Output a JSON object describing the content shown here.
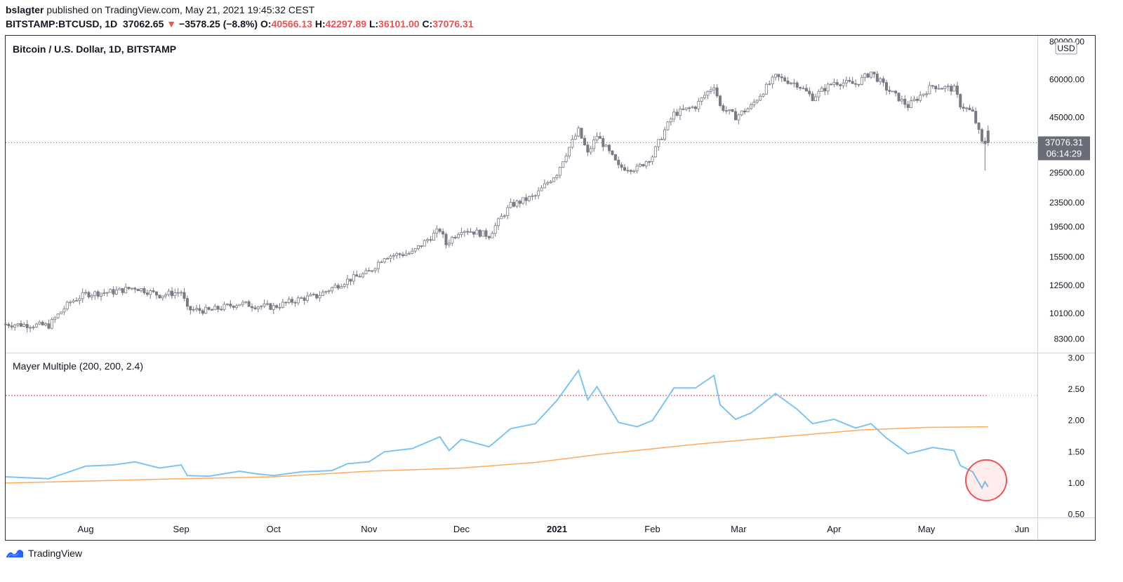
{
  "header": {
    "author": "bslagter",
    "published_text": "published on TradingView.com, May 21, 2021 19:45:32 CEST",
    "symbol": "BITSTAMP:BTCUSD, 1D",
    "last": "37062.65",
    "change": "−3578.25 (−8.8%)",
    "o_label": "O:",
    "o_val": "40566.13",
    "h_label": "H:",
    "h_val": "42297.89",
    "l_label": "L:",
    "l_val": "36101.00",
    "c_label": "C:",
    "c_val": "37076.31"
  },
  "price_pane": {
    "title": "Bitcoin / U.S. Dollar, 1D, BITSTAMP",
    "currency": "USD",
    "price_label": "37076.31",
    "countdown": "06:14:29"
  },
  "indicator_pane": {
    "title": "Mayer Multiple (200, 200, 2.4)"
  },
  "footer": {
    "brand": "TradingView"
  },
  "colors": {
    "candle": "#787b86",
    "mayer": "#7cc4f4",
    "sma": "#ffab5e",
    "threshold": "#e53935",
    "circle": "#ef5350"
  },
  "chart_data": [
    {
      "type": "candlestick",
      "title": "Bitcoin / U.S. Dollar, 1D, BITSTAMP",
      "y_scale": "log",
      "y_ticks": [
        80000,
        60000,
        45000,
        29500,
        23500,
        19500,
        15500,
        12500,
        10100,
        8300
      ],
      "y_tick_labels": [
        "80000.00",
        "60000.00",
        "45000.00",
        "29500.00",
        "23500.00",
        "19500.00",
        "15500.00",
        "12500.00",
        "10100.00",
        "8300.00"
      ],
      "x_tick_labels": [
        "Aug",
        "Sep",
        "Oct",
        "Nov",
        "Dec",
        "2021",
        "Feb",
        "Mar",
        "Apr",
        "May",
        "Jun"
      ],
      "x_tick_dates": [
        "2020-08-01",
        "2020-09-01",
        "2020-10-01",
        "2020-11-01",
        "2020-12-01",
        "2021-01-01",
        "2021-02-01",
        "2021-03-01",
        "2021-04-01",
        "2021-05-01",
        "2021-06-01"
      ],
      "x_range": [
        "2020-07-06",
        "2021-06-06"
      ],
      "y_range": [
        7600,
        82000
      ],
      "close_keypoints": [
        [
          "2020-07-06",
          9300
        ],
        [
          "2020-07-20",
          9200
        ],
        [
          "2020-07-27",
          11000
        ],
        [
          "2020-08-01",
          11700
        ],
        [
          "2020-08-10",
          11900
        ],
        [
          "2020-08-17",
          12300
        ],
        [
          "2020-08-25",
          11600
        ],
        [
          "2020-09-01",
          11900
        ],
        [
          "2020-09-03",
          10400
        ],
        [
          "2020-09-10",
          10300
        ],
        [
          "2020-09-20",
          10900
        ],
        [
          "2020-09-25",
          10700
        ],
        [
          "2020-10-01",
          10600
        ],
        [
          "2020-10-10",
          11300
        ],
        [
          "2020-10-15",
          11500
        ],
        [
          "2020-10-25",
          13000
        ],
        [
          "2020-11-01",
          13800
        ],
        [
          "2020-11-06",
          15600
        ],
        [
          "2020-11-15",
          16000
        ],
        [
          "2020-11-24",
          19100
        ],
        [
          "2020-11-26",
          17100
        ],
        [
          "2020-12-01",
          19200
        ],
        [
          "2020-12-10",
          18300
        ],
        [
          "2020-12-17",
          23000
        ],
        [
          "2020-12-25",
          24700
        ],
        [
          "2021-01-01",
          29400
        ],
        [
          "2021-01-08",
          40600
        ],
        [
          "2021-01-11",
          34000
        ],
        [
          "2021-01-14",
          39100
        ],
        [
          "2021-01-21",
          30800
        ],
        [
          "2021-01-27",
          30400
        ],
        [
          "2021-02-01",
          33500
        ],
        [
          "2021-02-08",
          46200
        ],
        [
          "2021-02-15",
          48900
        ],
        [
          "2021-02-21",
          57500
        ],
        [
          "2021-02-23",
          48900
        ],
        [
          "2021-02-28",
          45200
        ],
        [
          "2021-03-05",
          48800
        ],
        [
          "2021-03-13",
          61200
        ],
        [
          "2021-03-20",
          58000
        ],
        [
          "2021-03-25",
          52300
        ],
        [
          "2021-04-01",
          58900
        ],
        [
          "2021-04-08",
          58000
        ],
        [
          "2021-04-13",
          63500
        ],
        [
          "2021-04-18",
          56000
        ],
        [
          "2021-04-25",
          49000
        ],
        [
          "2021-05-03",
          57200
        ],
        [
          "2021-05-10",
          55800
        ],
        [
          "2021-05-12",
          49500
        ],
        [
          "2021-05-16",
          46500
        ],
        [
          "2021-05-19",
          37000
        ],
        [
          "2021-05-21",
          37076
        ]
      ],
      "last_price": 37076.31
    },
    {
      "type": "line",
      "title": "Mayer Multiple (200, 200, 2.4)",
      "y_ticks": [
        3.0,
        2.5,
        2.0,
        1.5,
        1.0,
        0.5
      ],
      "y_tick_labels": [
        "3.00",
        "2.50",
        "2.00",
        "1.50",
        "1.00",
        "0.50"
      ],
      "y_range": [
        0.45,
        3.05
      ],
      "threshold": 2.4,
      "series": [
        {
          "color": "#7cc4f4",
          "points": [
            [
              "2020-07-06",
              1.1
            ],
            [
              "2020-07-20",
              1.07
            ],
            [
              "2020-07-26",
              1.17
            ],
            [
              "2020-08-01",
              1.27
            ],
            [
              "2020-08-10",
              1.29
            ],
            [
              "2020-08-17",
              1.34
            ],
            [
              "2020-08-25",
              1.24
            ],
            [
              "2020-09-01",
              1.29
            ],
            [
              "2020-09-03",
              1.12
            ],
            [
              "2020-09-10",
              1.11
            ],
            [
              "2020-09-20",
              1.19
            ],
            [
              "2020-09-25",
              1.15
            ],
            [
              "2020-10-01",
              1.12
            ],
            [
              "2020-10-10",
              1.18
            ],
            [
              "2020-10-20",
              1.2
            ],
            [
              "2020-10-25",
              1.31
            ],
            [
              "2020-11-01",
              1.34
            ],
            [
              "2020-11-06",
              1.5
            ],
            [
              "2020-11-15",
              1.55
            ],
            [
              "2020-11-24",
              1.74
            ],
            [
              "2020-11-27",
              1.52
            ],
            [
              "2020-12-01",
              1.7
            ],
            [
              "2020-12-10",
              1.58
            ],
            [
              "2020-12-17",
              1.87
            ],
            [
              "2020-12-25",
              1.95
            ],
            [
              "2021-01-01",
              2.32
            ],
            [
              "2021-01-08",
              2.8
            ],
            [
              "2021-01-11",
              2.33
            ],
            [
              "2021-01-14",
              2.54
            ],
            [
              "2021-01-21",
              1.97
            ],
            [
              "2021-01-27",
              1.9
            ],
            [
              "2021-02-01",
              2.0
            ],
            [
              "2021-02-08",
              2.52
            ],
            [
              "2021-02-15",
              2.52
            ],
            [
              "2021-02-21",
              2.72
            ],
            [
              "2021-02-23",
              2.25
            ],
            [
              "2021-02-28",
              2.02
            ],
            [
              "2021-03-05",
              2.12
            ],
            [
              "2021-03-13",
              2.43
            ],
            [
              "2021-03-20",
              2.18
            ],
            [
              "2021-03-25",
              1.95
            ],
            [
              "2021-04-01",
              2.02
            ],
            [
              "2021-04-08",
              1.88
            ],
            [
              "2021-04-13",
              1.95
            ],
            [
              "2021-04-18",
              1.72
            ],
            [
              "2021-04-25",
              1.47
            ],
            [
              "2021-05-03",
              1.57
            ],
            [
              "2021-05-10",
              1.52
            ],
            [
              "2021-05-12",
              1.28
            ],
            [
              "2021-05-16",
              1.18
            ],
            [
              "2021-05-19",
              0.92
            ],
            [
              "2021-05-20",
              1.02
            ],
            [
              "2021-05-21",
              0.94
            ]
          ]
        },
        {
          "color": "#ffab5e",
          "points": [
            [
              "2020-07-06",
              1.0
            ],
            [
              "2020-09-01",
              1.07
            ],
            [
              "2020-10-01",
              1.1
            ],
            [
              "2020-11-01",
              1.19
            ],
            [
              "2020-12-01",
              1.24
            ],
            [
              "2020-12-25",
              1.33
            ],
            [
              "2021-01-15",
              1.46
            ],
            [
              "2021-02-15",
              1.62
            ],
            [
              "2021-03-10",
              1.72
            ],
            [
              "2021-04-10",
              1.85
            ],
            [
              "2021-05-01",
              1.89
            ],
            [
              "2021-05-21",
              1.9
            ]
          ]
        }
      ],
      "highlight_circle": [
        "2021-05-19",
        1.0
      ]
    }
  ]
}
